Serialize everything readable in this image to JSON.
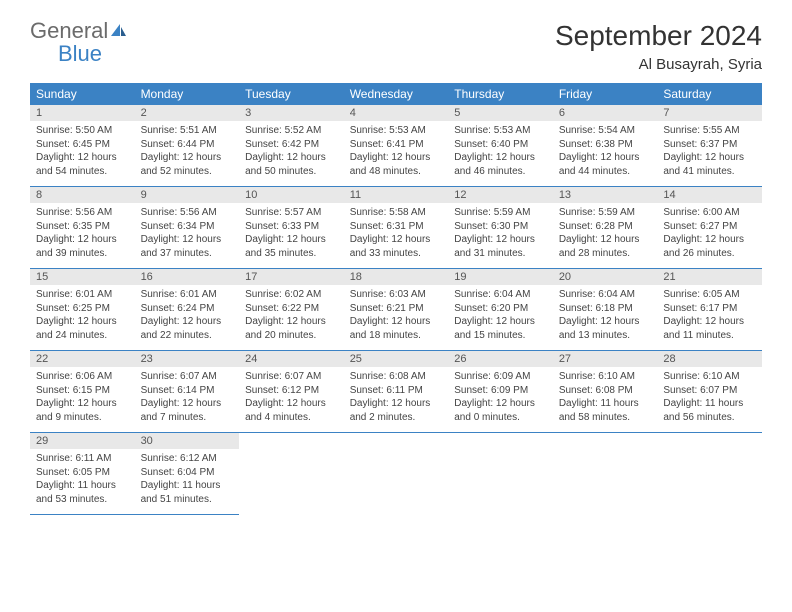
{
  "logo": {
    "text1": "General",
    "text2": "Blue"
  },
  "title": "September 2024",
  "location": "Al Busayrah, Syria",
  "colors": {
    "header_bg": "#3b82c4",
    "header_text": "#ffffff",
    "daynum_bg": "#e8e8e8",
    "daynum_text": "#555555",
    "body_text": "#444444",
    "border": "#3b82c4",
    "logo_gray": "#6b6b6b",
    "logo_blue": "#3b82c4",
    "page_bg": "#ffffff"
  },
  "typography": {
    "title_fontsize": 28,
    "location_fontsize": 15,
    "weekday_fontsize": 12,
    "daynum_fontsize": 11,
    "content_fontsize": 10
  },
  "weekdays": [
    "Sunday",
    "Monday",
    "Tuesday",
    "Wednesday",
    "Thursday",
    "Friday",
    "Saturday"
  ],
  "days": [
    {
      "n": 1,
      "sunrise": "5:50 AM",
      "sunset": "6:45 PM",
      "dh": 12,
      "dm": 54
    },
    {
      "n": 2,
      "sunrise": "5:51 AM",
      "sunset": "6:44 PM",
      "dh": 12,
      "dm": 52
    },
    {
      "n": 3,
      "sunrise": "5:52 AM",
      "sunset": "6:42 PM",
      "dh": 12,
      "dm": 50
    },
    {
      "n": 4,
      "sunrise": "5:53 AM",
      "sunset": "6:41 PM",
      "dh": 12,
      "dm": 48
    },
    {
      "n": 5,
      "sunrise": "5:53 AM",
      "sunset": "6:40 PM",
      "dh": 12,
      "dm": 46
    },
    {
      "n": 6,
      "sunrise": "5:54 AM",
      "sunset": "6:38 PM",
      "dh": 12,
      "dm": 44
    },
    {
      "n": 7,
      "sunrise": "5:55 AM",
      "sunset": "6:37 PM",
      "dh": 12,
      "dm": 41
    },
    {
      "n": 8,
      "sunrise": "5:56 AM",
      "sunset": "6:35 PM",
      "dh": 12,
      "dm": 39
    },
    {
      "n": 9,
      "sunrise": "5:56 AM",
      "sunset": "6:34 PM",
      "dh": 12,
      "dm": 37
    },
    {
      "n": 10,
      "sunrise": "5:57 AM",
      "sunset": "6:33 PM",
      "dh": 12,
      "dm": 35
    },
    {
      "n": 11,
      "sunrise": "5:58 AM",
      "sunset": "6:31 PM",
      "dh": 12,
      "dm": 33
    },
    {
      "n": 12,
      "sunrise": "5:59 AM",
      "sunset": "6:30 PM",
      "dh": 12,
      "dm": 31
    },
    {
      "n": 13,
      "sunrise": "5:59 AM",
      "sunset": "6:28 PM",
      "dh": 12,
      "dm": 28
    },
    {
      "n": 14,
      "sunrise": "6:00 AM",
      "sunset": "6:27 PM",
      "dh": 12,
      "dm": 26
    },
    {
      "n": 15,
      "sunrise": "6:01 AM",
      "sunset": "6:25 PM",
      "dh": 12,
      "dm": 24
    },
    {
      "n": 16,
      "sunrise": "6:01 AM",
      "sunset": "6:24 PM",
      "dh": 12,
      "dm": 22
    },
    {
      "n": 17,
      "sunrise": "6:02 AM",
      "sunset": "6:22 PM",
      "dh": 12,
      "dm": 20
    },
    {
      "n": 18,
      "sunrise": "6:03 AM",
      "sunset": "6:21 PM",
      "dh": 12,
      "dm": 18
    },
    {
      "n": 19,
      "sunrise": "6:04 AM",
      "sunset": "6:20 PM",
      "dh": 12,
      "dm": 15
    },
    {
      "n": 20,
      "sunrise": "6:04 AM",
      "sunset": "6:18 PM",
      "dh": 12,
      "dm": 13
    },
    {
      "n": 21,
      "sunrise": "6:05 AM",
      "sunset": "6:17 PM",
      "dh": 12,
      "dm": 11
    },
    {
      "n": 22,
      "sunrise": "6:06 AM",
      "sunset": "6:15 PM",
      "dh": 12,
      "dm": 9
    },
    {
      "n": 23,
      "sunrise": "6:07 AM",
      "sunset": "6:14 PM",
      "dh": 12,
      "dm": 7
    },
    {
      "n": 24,
      "sunrise": "6:07 AM",
      "sunset": "6:12 PM",
      "dh": 12,
      "dm": 4
    },
    {
      "n": 25,
      "sunrise": "6:08 AM",
      "sunset": "6:11 PM",
      "dh": 12,
      "dm": 2
    },
    {
      "n": 26,
      "sunrise": "6:09 AM",
      "sunset": "6:09 PM",
      "dh": 12,
      "dm": 0
    },
    {
      "n": 27,
      "sunrise": "6:10 AM",
      "sunset": "6:08 PM",
      "dh": 11,
      "dm": 58
    },
    {
      "n": 28,
      "sunrise": "6:10 AM",
      "sunset": "6:07 PM",
      "dh": 11,
      "dm": 56
    },
    {
      "n": 29,
      "sunrise": "6:11 AM",
      "sunset": "6:05 PM",
      "dh": 11,
      "dm": 53
    },
    {
      "n": 30,
      "sunrise": "6:12 AM",
      "sunset": "6:04 PM",
      "dh": 11,
      "dm": 51
    }
  ],
  "start_weekday": 0,
  "labels": {
    "sunrise": "Sunrise:",
    "sunset": "Sunset:",
    "daylight": "Daylight:",
    "hours": "hours",
    "and": "and",
    "minutes": "minutes."
  }
}
